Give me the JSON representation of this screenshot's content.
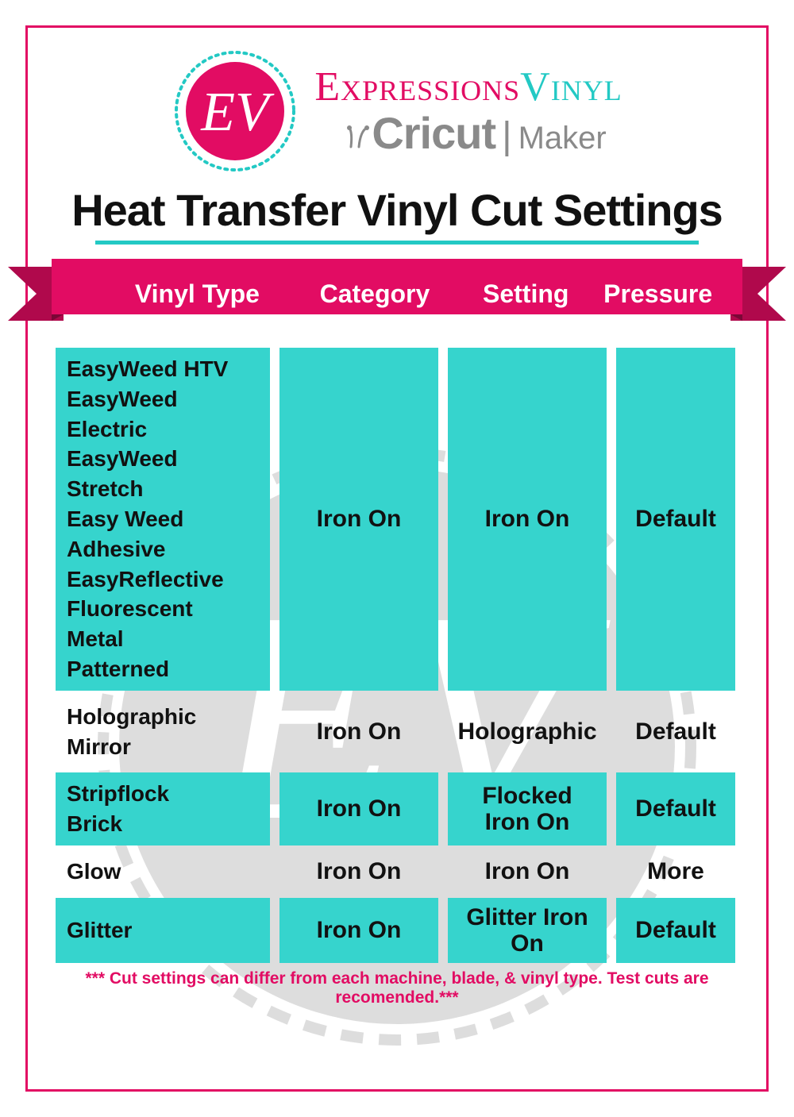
{
  "colors": {
    "pink": "#e20c63",
    "teal": "#23c9c4",
    "cell_teal": "#36d4cd",
    "gray": "#8a8a8a",
    "watermark": "#bdbdbd",
    "text": "#111111",
    "white": "#ffffff"
  },
  "logo": {
    "badge_letters": "EV",
    "brand_part1": "Expressions",
    "brand_part2": "Vinyl",
    "sub_brand": "Cricut",
    "sub_divider": "|",
    "sub_model": "Maker"
  },
  "title": "Heat Transfer Vinyl Cut Settings",
  "columns": {
    "type": "Vinyl Type",
    "category": "Category",
    "setting": "Setting",
    "pressure": "Pressure"
  },
  "rows": [
    {
      "bg": "teal",
      "types": [
        "EasyWeed HTV",
        "EasyWeed Electric",
        "EasyWeed Stretch",
        "Easy Weed Adhesive",
        "EasyReflective",
        "Fluorescent",
        "Metal",
        "Patterned"
      ],
      "category": "Iron On",
      "setting": "Iron On",
      "pressure": "Default"
    },
    {
      "bg": "plain",
      "types": [
        "Holographic",
        "Mirror"
      ],
      "category": "Iron On",
      "setting": "Holographic",
      "pressure": "Default"
    },
    {
      "bg": "teal",
      "types": [
        "Stripflock",
        "Brick"
      ],
      "category": "Iron On",
      "setting": "Flocked Iron On",
      "pressure": "Default"
    },
    {
      "bg": "plain",
      "types": [
        "Glow"
      ],
      "category": "Iron On",
      "setting": "Iron On",
      "pressure": "More"
    },
    {
      "bg": "teal",
      "types": [
        "Glitter"
      ],
      "category": "Iron On",
      "setting": "Glitter Iron On",
      "pressure": "Default"
    }
  ],
  "footnote": "*** Cut settings can differ from each machine, blade, & vinyl type. Test cuts are recomended.***",
  "typography": {
    "title_fontsize": 56,
    "header_fontsize": 32,
    "cell_fontsize": 30,
    "types_fontsize": 28,
    "footnote_fontsize": 21
  }
}
